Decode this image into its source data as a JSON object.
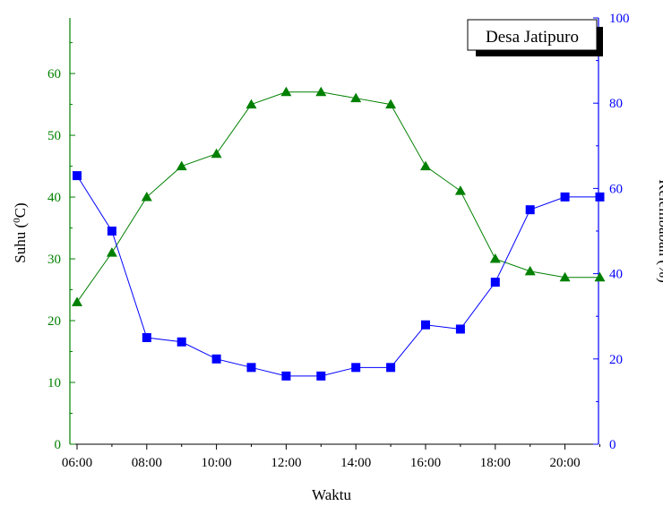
{
  "chart_data": {
    "type": "line",
    "title": "",
    "annotation": "Desa Jatipuro",
    "xlabel": "Waktu",
    "y1label": "Suhu (",
    "y1label_sup": "0",
    "y1label_end": "C)",
    "y2label": "Kelembaban (%)",
    "x_categories": [
      "06:00",
      "07:00",
      "08:00",
      "09:00",
      "10:00",
      "11:00",
      "12:00",
      "13:00",
      "14:00",
      "15:00",
      "16:00",
      "17:00",
      "18:00",
      "19:00",
      "20:00",
      "21:00"
    ],
    "x_tick_labels": [
      "06:00",
      "08:00",
      "10:00",
      "12:00",
      "14:00",
      "16:00",
      "18:00",
      "20:00"
    ],
    "y1lim": [
      0,
      69
    ],
    "y1ticks": [
      0,
      10,
      20,
      30,
      40,
      50,
      60
    ],
    "y2lim": [
      0,
      100
    ],
    "y2ticks": [
      0,
      20,
      40,
      60,
      80,
      100
    ],
    "series": [
      {
        "axis": "left",
        "marker": "triangle",
        "color": "#008000",
        "values": [
          23,
          31,
          40,
          45,
          47,
          55,
          57,
          57,
          56,
          55,
          45,
          41,
          30,
          28,
          27,
          27
        ]
      },
      {
        "axis": "right",
        "marker": "square",
        "color": "#0000ff",
        "values": [
          63,
          50,
          25,
          24,
          20,
          18,
          16,
          16,
          18,
          18,
          28,
          27,
          38,
          55,
          58,
          58
        ]
      }
    ],
    "grid": false
  }
}
